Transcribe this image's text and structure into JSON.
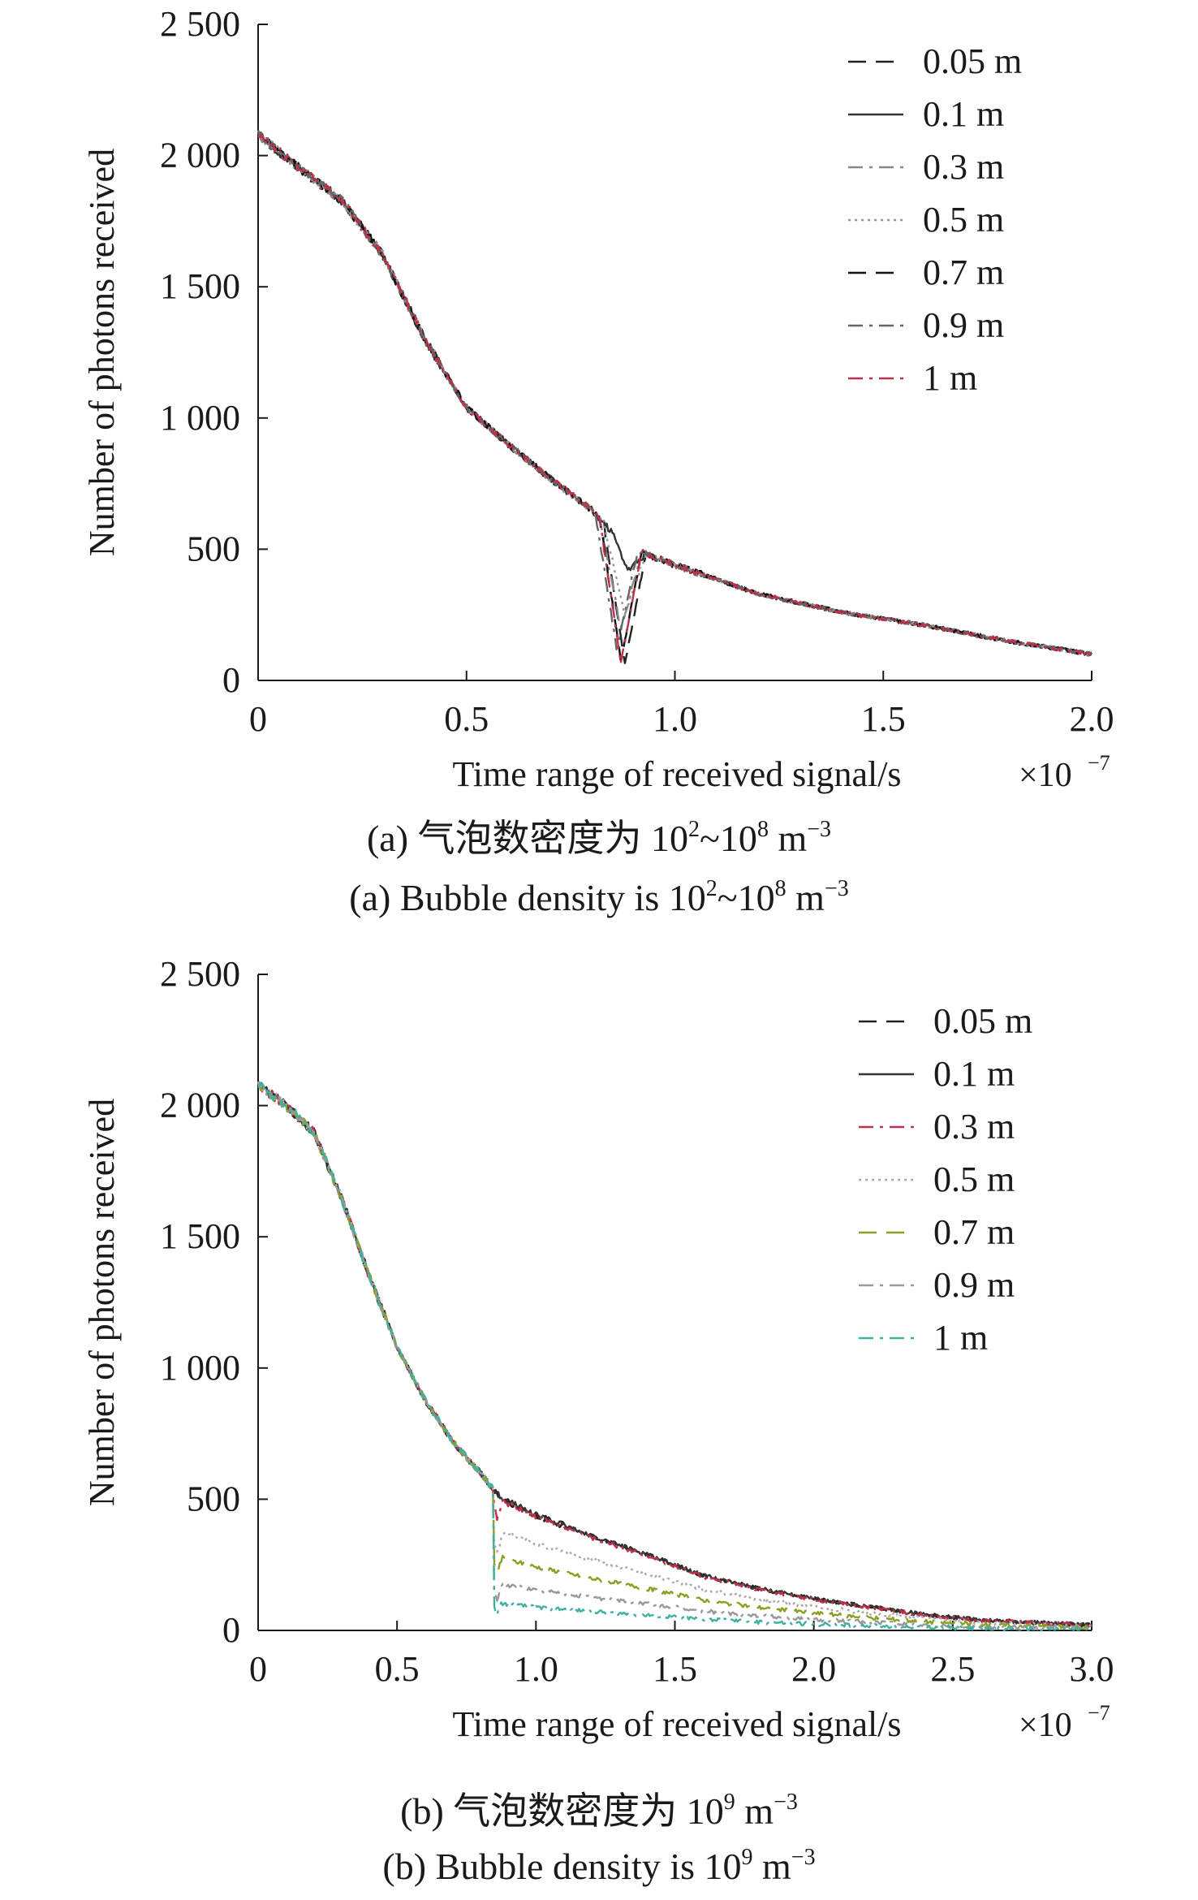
{
  "chart_data": [
    {
      "type": "line",
      "xlabel": "Time range of received signal/s",
      "x_multiplier": "×10",
      "x_multiplier_exp": "−7",
      "ylabel": "Number of photons received",
      "xlim": [
        0,
        2.0
      ],
      "ylim": [
        0,
        2500
      ],
      "xticks": [
        0,
        0.5,
        1.0,
        1.5,
        2.0
      ],
      "xtick_labels": [
        "0",
        "0.5",
        "1.0",
        "1.5",
        "2.0"
      ],
      "yticks": [
        0,
        500,
        1000,
        1500,
        2000,
        2500
      ],
      "ytick_labels": [
        "0",
        "500",
        "1 000",
        "1 500",
        "2 000",
        "2 500"
      ],
      "caption_cn": {
        "prefix": "(a) 气泡数密度为 10",
        "exp1": "2",
        "mid": "~10",
        "exp2": "8",
        "unit": " m",
        "exp3": "−3"
      },
      "caption_en": {
        "prefix": "(a) Bubble density is 10",
        "exp1": "2",
        "mid": "~10",
        "exp2": "8",
        "unit": " m",
        "exp3": "−3"
      },
      "legend_position": "top-right",
      "series": [
        {
          "name": "0.05 m",
          "color": "#222222",
          "dash": "22,12",
          "dip_x": 0.88,
          "dip_y": 60,
          "dip_width": 0.05
        },
        {
          "name": "0.1 m",
          "color": "#333333",
          "dash": "",
          "dip_x": 0.89,
          "dip_y": 420,
          "dip_width": 0.04
        },
        {
          "name": "0.3 m",
          "color": "#888888",
          "dash": "18,8,4,8",
          "dip_x": 0.87,
          "dip_y": 200,
          "dip_width": 0.05
        },
        {
          "name": "0.5 m",
          "color": "#999999",
          "dash": "3,5",
          "dip_x": 0.88,
          "dip_y": 250,
          "dip_width": 0.05
        },
        {
          "name": "0.7 m",
          "color": "#111111",
          "dash": "22,12",
          "dip_x": 0.87,
          "dip_y": 80,
          "dip_width": 0.05
        },
        {
          "name": "0.9 m",
          "color": "#666666",
          "dash": "18,8,4,8",
          "dip_x": 0.86,
          "dip_y": 120,
          "dip_width": 0.05
        },
        {
          "name": "1 m",
          "color": "#c0304a",
          "dash": "18,8,4,8",
          "dip_x": 0.87,
          "dip_y": 70,
          "dip_width": 0.05
        }
      ],
      "base_curve": [
        [
          0,
          2080
        ],
        [
          0.1,
          1950
        ],
        [
          0.2,
          1830
        ],
        [
          0.3,
          1620
        ],
        [
          0.4,
          1300
        ],
        [
          0.5,
          1040
        ],
        [
          0.6,
          900
        ],
        [
          0.7,
          770
        ],
        [
          0.8,
          650
        ],
        [
          0.88,
          510
        ],
        [
          0.9,
          500
        ],
        [
          1.0,
          440
        ],
        [
          1.2,
          330
        ],
        [
          1.4,
          260
        ],
        [
          1.6,
          210
        ],
        [
          1.8,
          150
        ],
        [
          2.0,
          100
        ]
      ]
    },
    {
      "type": "line",
      "xlabel": "Time range of received signal/s",
      "x_multiplier": "×10",
      "x_multiplier_exp": "−7",
      "ylabel": "Number of photons received",
      "xlim": [
        0,
        3.0
      ],
      "ylim": [
        0,
        2500
      ],
      "xticks": [
        0,
        0.5,
        1.0,
        1.5,
        2.0,
        2.5,
        3.0
      ],
      "xtick_labels": [
        "0",
        "0.5",
        "1.0",
        "1.5",
        "2.0",
        "2.5",
        "3.0"
      ],
      "yticks": [
        0,
        500,
        1000,
        1500,
        2000,
        2500
      ],
      "ytick_labels": [
        "0",
        "500",
        "1 000",
        "1 500",
        "2 000",
        "2 500"
      ],
      "caption_cn": {
        "prefix": "(b) 气泡数密度为 10",
        "exp1": "9",
        "mid": "",
        "exp2": "",
        "unit": " m",
        "exp3": "−3"
      },
      "caption_en": {
        "prefix": "(b) Bubble density is 10",
        "exp1": "9",
        "mid": "",
        "exp2": "",
        "unit": " m",
        "exp3": "−3"
      },
      "legend_position": "top-right",
      "series": [
        {
          "name": "0.05 m",
          "color": "#222222",
          "dash": "22,12",
          "tail_factor": 1.0,
          "dip_y": 480
        },
        {
          "name": "0.1 m",
          "color": "#333333",
          "dash": "",
          "tail_factor": 1.0,
          "dip_y": 470
        },
        {
          "name": "0.3 m",
          "color": "#c0304a",
          "dash": "18,8,4,8",
          "tail_factor": 0.98,
          "dip_y": 430
        },
        {
          "name": "0.5 m",
          "color": "#aaaaaa",
          "dash": "3,5",
          "tail_factor": 0.75,
          "dip_y": 300
        },
        {
          "name": "0.7 m",
          "color": "#8aa020",
          "dash": "22,12",
          "tail_factor": 0.55,
          "dip_y": 220
        },
        {
          "name": "0.9 m",
          "color": "#999999",
          "dash": "18,8,4,8",
          "tail_factor": 0.35,
          "dip_y": 120
        },
        {
          "name": "1 m",
          "color": "#40b0a0",
          "dash": "18,8,4,8",
          "tail_factor": 0.2,
          "dip_y": 60
        }
      ],
      "base_curve": [
        [
          0,
          2080
        ],
        [
          0.1,
          2000
        ],
        [
          0.2,
          1900
        ],
        [
          0.3,
          1650
        ],
        [
          0.4,
          1350
        ],
        [
          0.5,
          1080
        ],
        [
          0.6,
          880
        ],
        [
          0.7,
          720
        ],
        [
          0.8,
          600
        ],
        [
          0.86,
          520
        ],
        [
          0.9,
          490
        ],
        [
          1.0,
          440
        ],
        [
          1.2,
          360
        ],
        [
          1.4,
          290
        ],
        [
          1.6,
          210
        ],
        [
          1.8,
          160
        ],
        [
          2.0,
          120
        ],
        [
          2.2,
          90
        ],
        [
          2.4,
          60
        ],
        [
          2.6,
          40
        ],
        [
          2.8,
          30
        ],
        [
          3.0,
          20
        ]
      ]
    }
  ]
}
